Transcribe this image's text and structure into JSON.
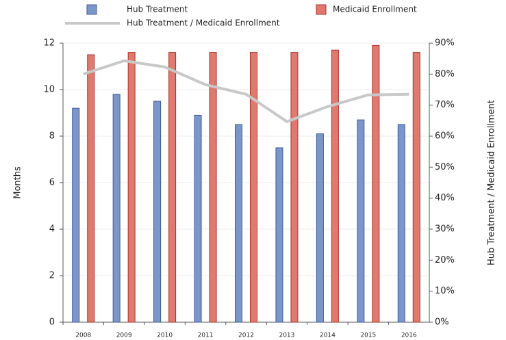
{
  "chart_data": {
    "type": "bar",
    "categories": [
      "2008",
      "2009",
      "2010",
      "2011",
      "2012",
      "2013",
      "2014",
      "2015",
      "2016"
    ],
    "series": [
      {
        "name": "Hub Treatment",
        "color": "#7b96c9",
        "values": [
          9.2,
          9.8,
          9.5,
          8.9,
          8.5,
          7.5,
          8.1,
          8.7,
          8.5
        ]
      },
      {
        "name": "Medicaid Enrollment",
        "color": "#e07a6e",
        "values": [
          11.5,
          11.6,
          11.6,
          11.6,
          11.6,
          11.6,
          11.7,
          11.9,
          11.6
        ]
      },
      {
        "name": "Hub Treatment / Medicaid Enrollment",
        "type": "line",
        "color": "#c8c8c8",
        "axis": "y2",
        "values": [
          80,
          84.3,
          82.3,
          76.6,
          73.5,
          64.7,
          69.5,
          73.3,
          73.5
        ]
      }
    ],
    "ylabel": "Months",
    "y2label": "Hub Treatment / Medicaid Enrollment",
    "ylim": [
      0,
      12
    ],
    "yticks": [
      0,
      2,
      4,
      6,
      8,
      10,
      12
    ],
    "y2lim": [
      0,
      90
    ],
    "y2ticks": [
      {
        "value": 0,
        "label": "0%"
      },
      {
        "value": 10,
        "label": "10%"
      },
      {
        "value": 20,
        "label": "20%"
      },
      {
        "value": 30,
        "label": "30%"
      },
      {
        "value": 40,
        "label": "40%"
      },
      {
        "value": 50,
        "label": "50%"
      },
      {
        "value": 60,
        "label": "60%"
      },
      {
        "value": 70,
        "label": "70%"
      },
      {
        "value": 80,
        "label": "80%"
      },
      {
        "value": 90,
        "label": "90%"
      }
    ],
    "grid": true,
    "legend": "top"
  }
}
